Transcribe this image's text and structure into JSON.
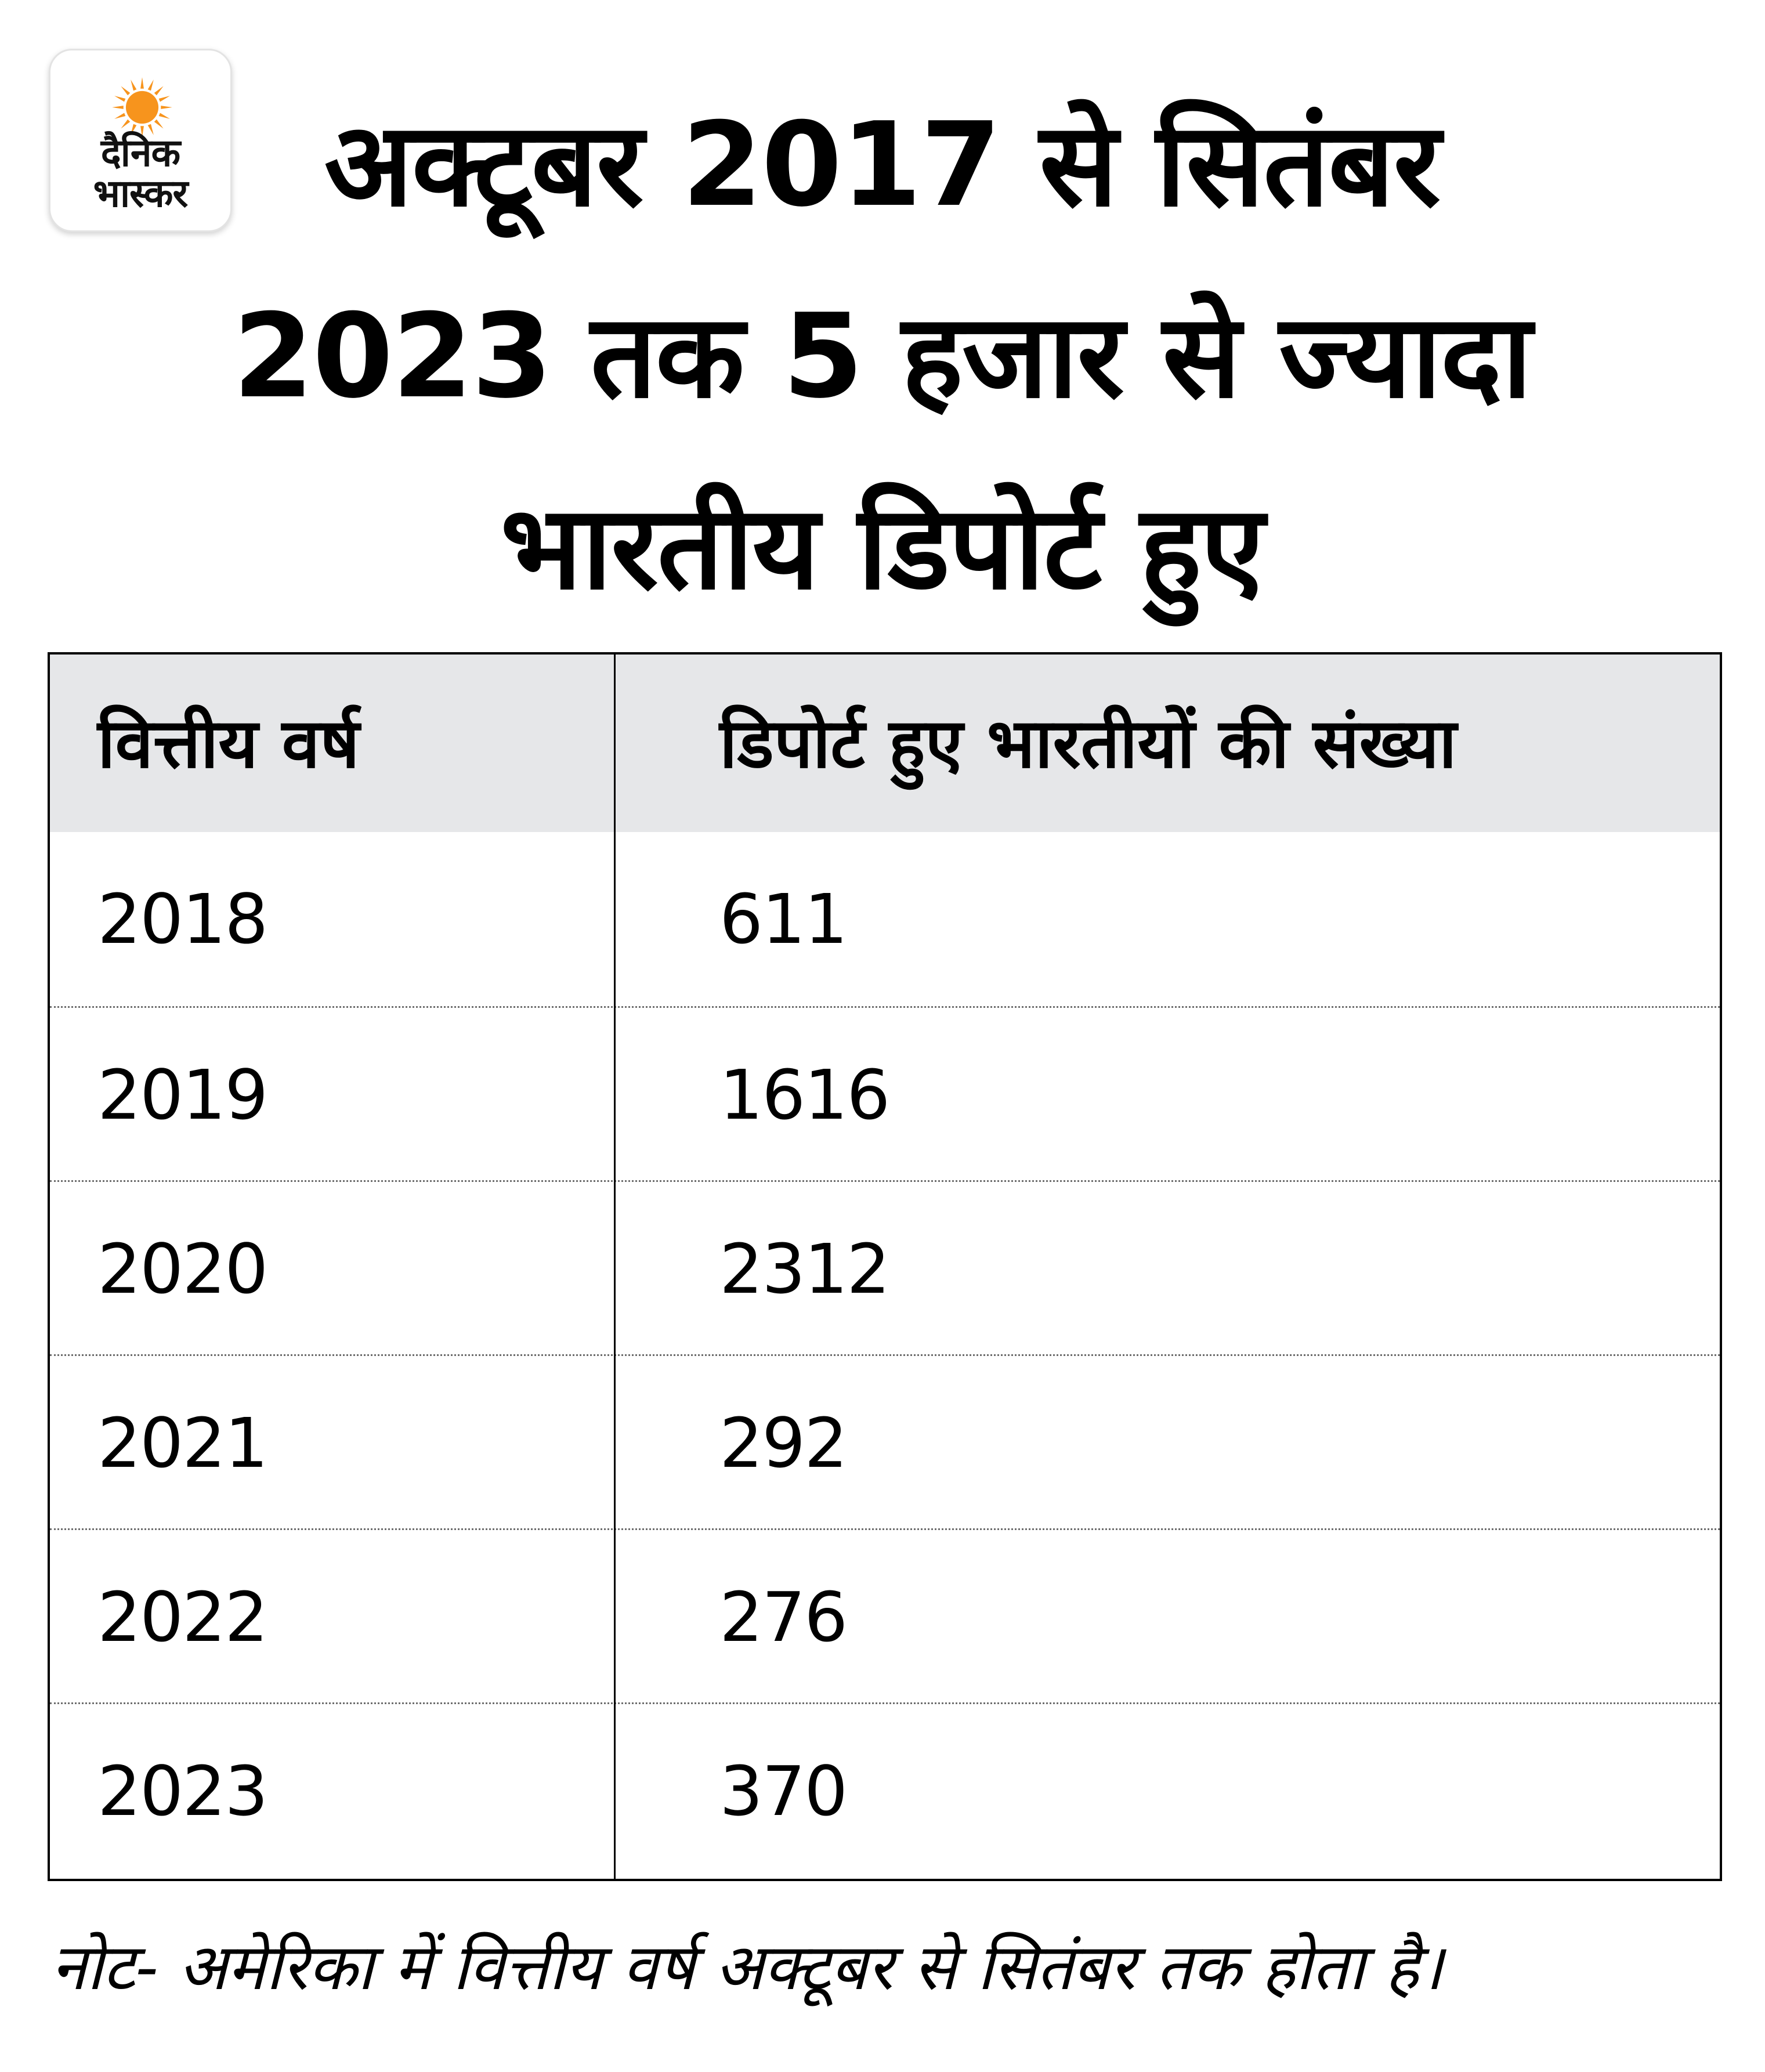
{
  "logo": {
    "line1": "दैनिक",
    "line2": "भास्कर",
    "sun_color": "#f7941d"
  },
  "title": {
    "line1": "अक्टूबर 2017 से सितंबर",
    "line2": "2023 तक 5 हजार से ज्यादा",
    "line3": "भारतीय डिपोर्ट हुए"
  },
  "table": {
    "headers": [
      "वित्तीय वर्ष",
      "डिपोर्ट हुए भारतीयों की संख्या"
    ],
    "rows": [
      [
        "2018",
        "611"
      ],
      [
        "2019",
        "1616"
      ],
      [
        "2020",
        "2312"
      ],
      [
        "2021",
        "292"
      ],
      [
        "2022",
        "276"
      ],
      [
        "2023",
        "370"
      ]
    ],
    "header_bg": "#e6e7e9"
  },
  "note": "नोट- अमेरिका में वित्तीय वर्ष अक्टूबर से सितंबर तक होता है।"
}
